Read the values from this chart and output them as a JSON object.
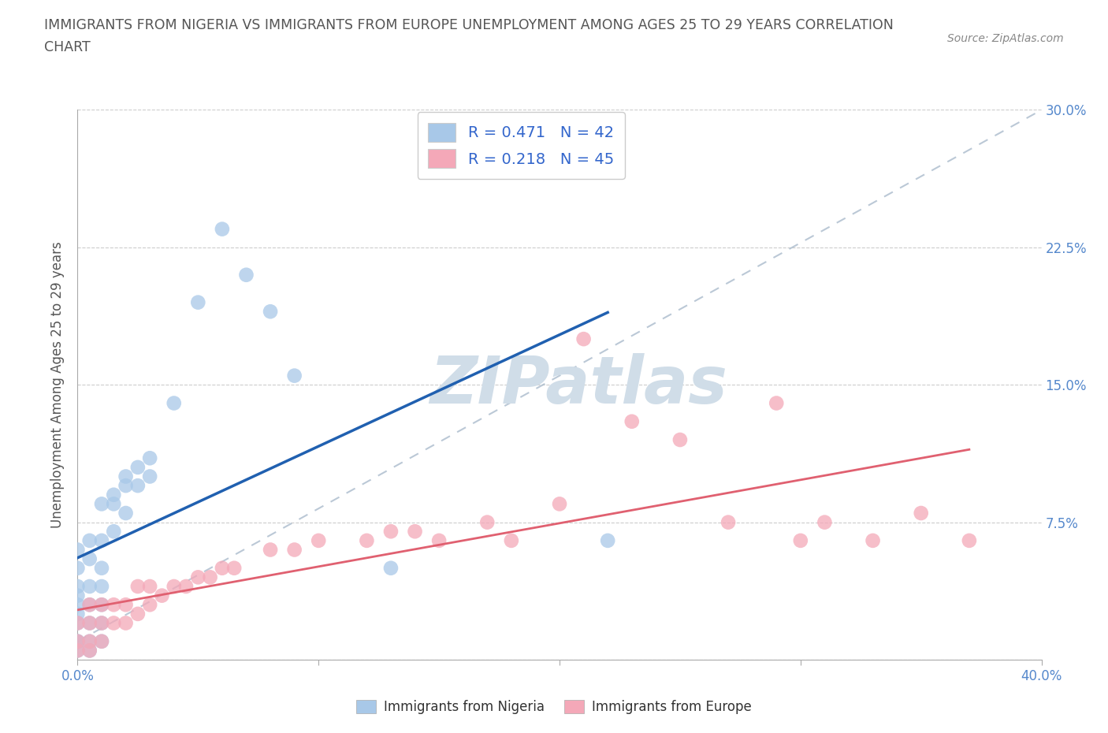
{
  "title_line1": "IMMIGRANTS FROM NIGERIA VS IMMIGRANTS FROM EUROPE UNEMPLOYMENT AMONG AGES 25 TO 29 YEARS CORRELATION",
  "title_line2": "CHART",
  "source_text": "Source: ZipAtlas.com",
  "ylabel": "Unemployment Among Ages 25 to 29 years",
  "xlim": [
    0.0,
    0.4
  ],
  "ylim": [
    0.0,
    0.3
  ],
  "xticks": [
    0.0,
    0.1,
    0.2,
    0.3,
    0.4
  ],
  "yticks": [
    0.0,
    0.075,
    0.15,
    0.225,
    0.3
  ],
  "xticklabels": [
    "0.0%",
    "",
    "",
    "",
    "40.0%"
  ],
  "yticklabels": [
    "",
    "7.5%",
    "15.0%",
    "22.5%",
    "30.0%"
  ],
  "R_nigeria": 0.471,
  "N_nigeria": 42,
  "R_europe": 0.218,
  "N_europe": 45,
  "nigeria_color": "#a8c8e8",
  "europe_color": "#f4a8b8",
  "nigeria_line_color": "#2060b0",
  "europe_line_color": "#e06070",
  "nigeria_scatter": [
    [
      0.0,
      0.005
    ],
    [
      0.0,
      0.01
    ],
    [
      0.0,
      0.01
    ],
    [
      0.0,
      0.02
    ],
    [
      0.0,
      0.025
    ],
    [
      0.0,
      0.03
    ],
    [
      0.0,
      0.035
    ],
    [
      0.0,
      0.04
    ],
    [
      0.0,
      0.05
    ],
    [
      0.0,
      0.06
    ],
    [
      0.005,
      0.005
    ],
    [
      0.005,
      0.01
    ],
    [
      0.005,
      0.02
    ],
    [
      0.005,
      0.03
    ],
    [
      0.005,
      0.04
    ],
    [
      0.005,
      0.055
    ],
    [
      0.005,
      0.065
    ],
    [
      0.01,
      0.01
    ],
    [
      0.01,
      0.02
    ],
    [
      0.01,
      0.03
    ],
    [
      0.01,
      0.04
    ],
    [
      0.01,
      0.05
    ],
    [
      0.01,
      0.065
    ],
    [
      0.01,
      0.085
    ],
    [
      0.015,
      0.07
    ],
    [
      0.015,
      0.085
    ],
    [
      0.015,
      0.09
    ],
    [
      0.02,
      0.08
    ],
    [
      0.02,
      0.095
    ],
    [
      0.02,
      0.1
    ],
    [
      0.025,
      0.095
    ],
    [
      0.025,
      0.105
    ],
    [
      0.03,
      0.1
    ],
    [
      0.03,
      0.11
    ],
    [
      0.04,
      0.14
    ],
    [
      0.05,
      0.195
    ],
    [
      0.06,
      0.235
    ],
    [
      0.07,
      0.21
    ],
    [
      0.08,
      0.19
    ],
    [
      0.09,
      0.155
    ],
    [
      0.13,
      0.05
    ],
    [
      0.22,
      0.065
    ]
  ],
  "europe_scatter": [
    [
      0.0,
      0.005
    ],
    [
      0.0,
      0.01
    ],
    [
      0.0,
      0.02
    ],
    [
      0.005,
      0.005
    ],
    [
      0.005,
      0.01
    ],
    [
      0.005,
      0.02
    ],
    [
      0.005,
      0.03
    ],
    [
      0.01,
      0.01
    ],
    [
      0.01,
      0.02
    ],
    [
      0.01,
      0.03
    ],
    [
      0.015,
      0.02
    ],
    [
      0.015,
      0.03
    ],
    [
      0.02,
      0.02
    ],
    [
      0.02,
      0.03
    ],
    [
      0.025,
      0.025
    ],
    [
      0.025,
      0.04
    ],
    [
      0.03,
      0.03
    ],
    [
      0.03,
      0.04
    ],
    [
      0.035,
      0.035
    ],
    [
      0.04,
      0.04
    ],
    [
      0.045,
      0.04
    ],
    [
      0.05,
      0.045
    ],
    [
      0.055,
      0.045
    ],
    [
      0.06,
      0.05
    ],
    [
      0.065,
      0.05
    ],
    [
      0.08,
      0.06
    ],
    [
      0.09,
      0.06
    ],
    [
      0.1,
      0.065
    ],
    [
      0.12,
      0.065
    ],
    [
      0.13,
      0.07
    ],
    [
      0.14,
      0.07
    ],
    [
      0.15,
      0.065
    ],
    [
      0.17,
      0.075
    ],
    [
      0.18,
      0.065
    ],
    [
      0.2,
      0.085
    ],
    [
      0.21,
      0.175
    ],
    [
      0.23,
      0.13
    ],
    [
      0.25,
      0.12
    ],
    [
      0.27,
      0.075
    ],
    [
      0.29,
      0.14
    ],
    [
      0.3,
      0.065
    ],
    [
      0.31,
      0.075
    ],
    [
      0.33,
      0.065
    ],
    [
      0.35,
      0.08
    ],
    [
      0.37,
      0.065
    ]
  ],
  "dashed_line": [
    [
      0.0,
      0.01
    ],
    [
      0.4,
      0.3
    ]
  ],
  "watermark_text": "ZIPatlas",
  "watermark_color": "#d0dde8",
  "background_color": "#ffffff",
  "grid_color": "#cccccc",
  "tick_color": "#5588cc",
  "title_color": "#555555"
}
